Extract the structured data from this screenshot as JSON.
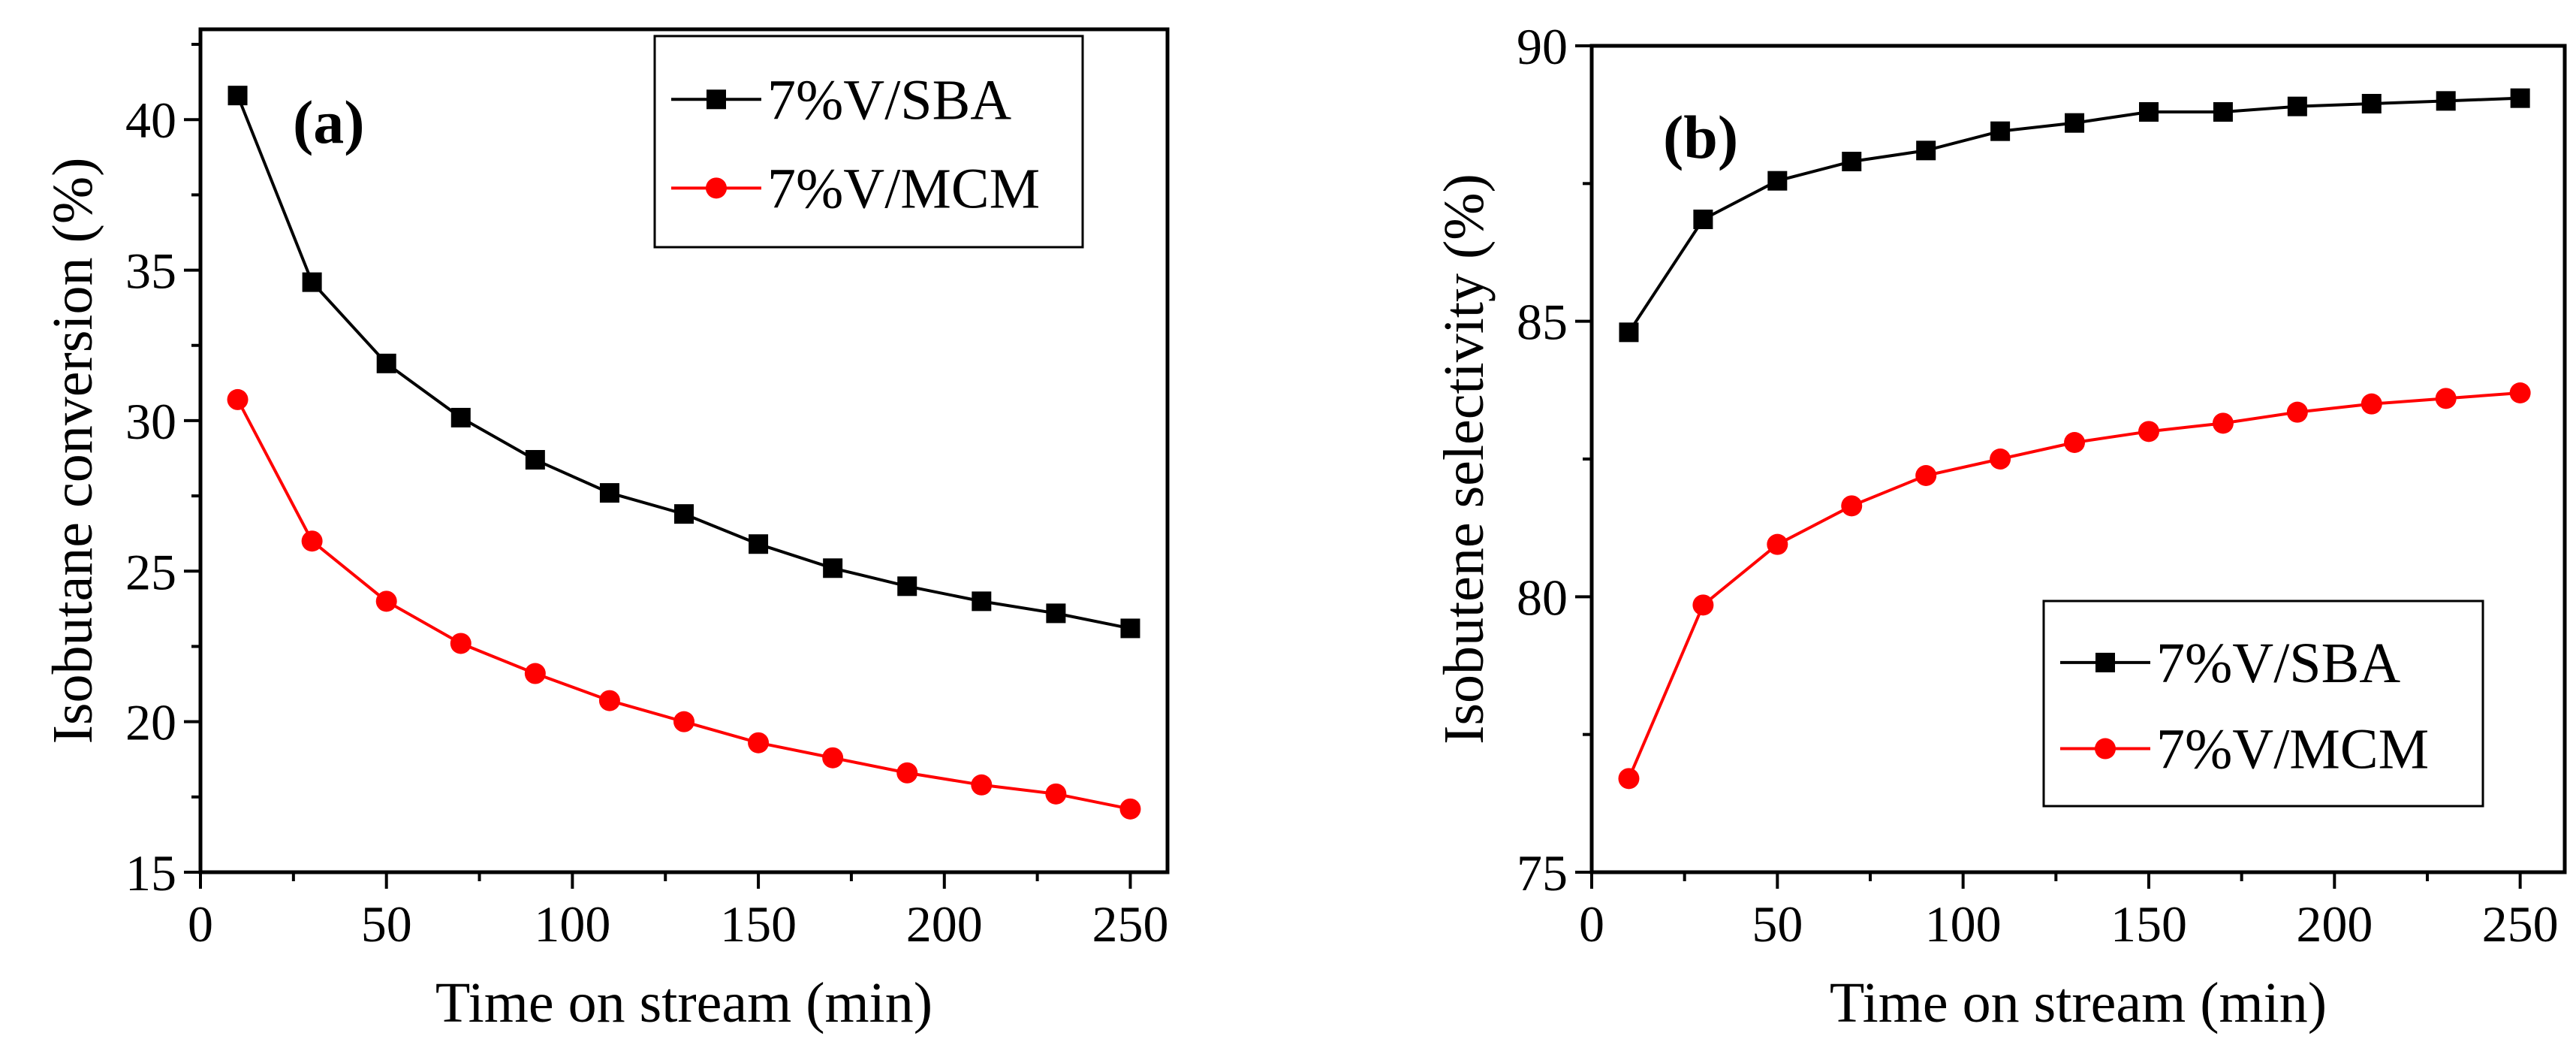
{
  "chart_data": [
    {
      "type": "line",
      "panel_label": "(a)",
      "xlabel": "Time on stream (min)",
      "ylabel": "Isobutane conversion (%)",
      "xlim": [
        0,
        260
      ],
      "ylim": [
        15,
        43
      ],
      "xticks": [
        0,
        50,
        100,
        150,
        200,
        250
      ],
      "yticks": [
        15,
        20,
        25,
        30,
        35,
        40
      ],
      "legend_position": "top-right",
      "x": [
        10,
        30,
        50,
        70,
        90,
        110,
        130,
        150,
        170,
        190,
        210,
        230,
        250
      ],
      "series": [
        {
          "name": "7%V/SBA",
          "color": "#000000",
          "marker": "square",
          "values": [
            40.8,
            34.6,
            31.9,
            30.1,
            28.7,
            27.6,
            26.9,
            25.9,
            25.1,
            24.5,
            24.0,
            23.6,
            23.1
          ]
        },
        {
          "name": "7%V/MCM",
          "color": "#ff0000",
          "marker": "circle",
          "values": [
            30.7,
            26.0,
            24.0,
            22.6,
            21.6,
            20.7,
            20.0,
            19.3,
            18.8,
            18.3,
            17.9,
            17.6,
            17.1
          ]
        }
      ]
    },
    {
      "type": "line",
      "panel_label": "(b)",
      "xlabel": "Time on stream (min)",
      "ylabel": "Isobutene selectivity (%)",
      "xlim": [
        0,
        262
      ],
      "ylim": [
        75,
        90
      ],
      "xticks": [
        0,
        50,
        100,
        150,
        200,
        250
      ],
      "yticks": [
        75,
        80,
        85,
        90
      ],
      "legend_position": "bottom-right",
      "x": [
        10,
        30,
        50,
        70,
        90,
        110,
        130,
        150,
        170,
        190,
        210,
        230,
        250
      ],
      "series": [
        {
          "name": "7%V/SBA",
          "color": "#000000",
          "marker": "square",
          "values": [
            84.8,
            86.85,
            87.55,
            87.9,
            88.1,
            88.45,
            88.6,
            88.8,
            88.8,
            88.9,
            88.95,
            89.0,
            89.05
          ]
        },
        {
          "name": "7%V/MCM",
          "color": "#ff0000",
          "marker": "circle",
          "values": [
            76.7,
            79.85,
            80.95,
            81.65,
            82.2,
            82.5,
            82.8,
            83.0,
            83.15,
            83.35,
            83.5,
            83.6,
            83.7
          ]
        }
      ]
    }
  ]
}
